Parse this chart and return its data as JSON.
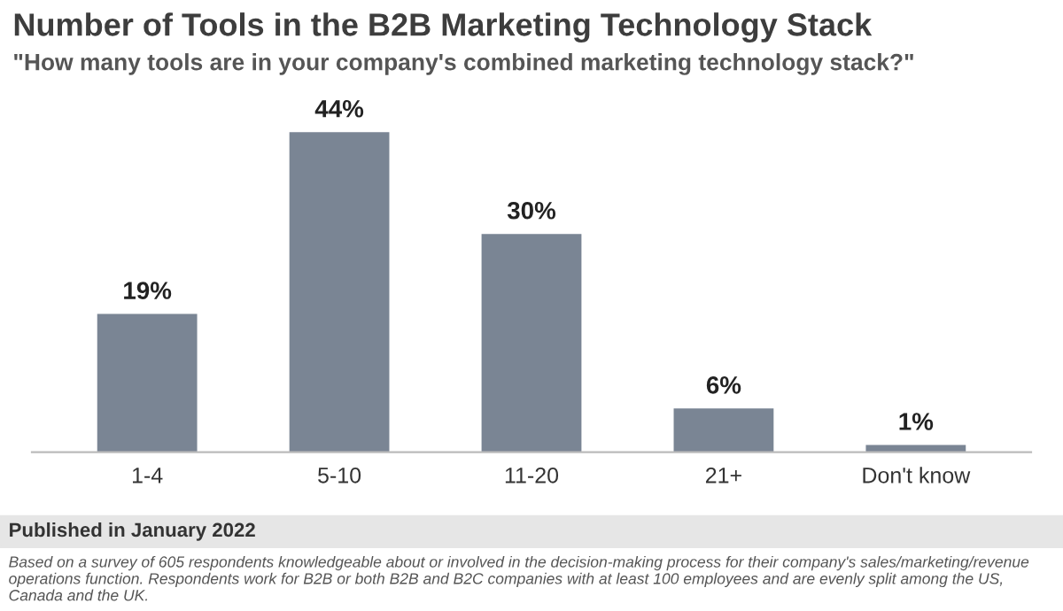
{
  "chart_data": {
    "type": "bar",
    "title": "Number of Tools in the B2B Marketing Technology Stack",
    "subtitle": "\"How many tools are in your company's combined marketing technology stack?\"",
    "categories": [
      "1-4",
      "5-10",
      "11-20",
      "21+",
      "Don't know"
    ],
    "values": [
      19,
      44,
      30,
      6,
      1
    ],
    "value_labels": [
      "19%",
      "44%",
      "30%",
      "6%",
      "1%"
    ],
    "color": "#7a8594",
    "grid": false,
    "legend": false,
    "annotations": [
      "Published in January 2022",
      "Based on a survey of 605 respondents knowledgeable about or involved in the decision-making process for their company's sales/marketing/revenue operations function. Respondents work for B2B or both B2B and B2C companies with at least 100 employees and are evenly split among the US, Canada and the UK."
    ]
  }
}
